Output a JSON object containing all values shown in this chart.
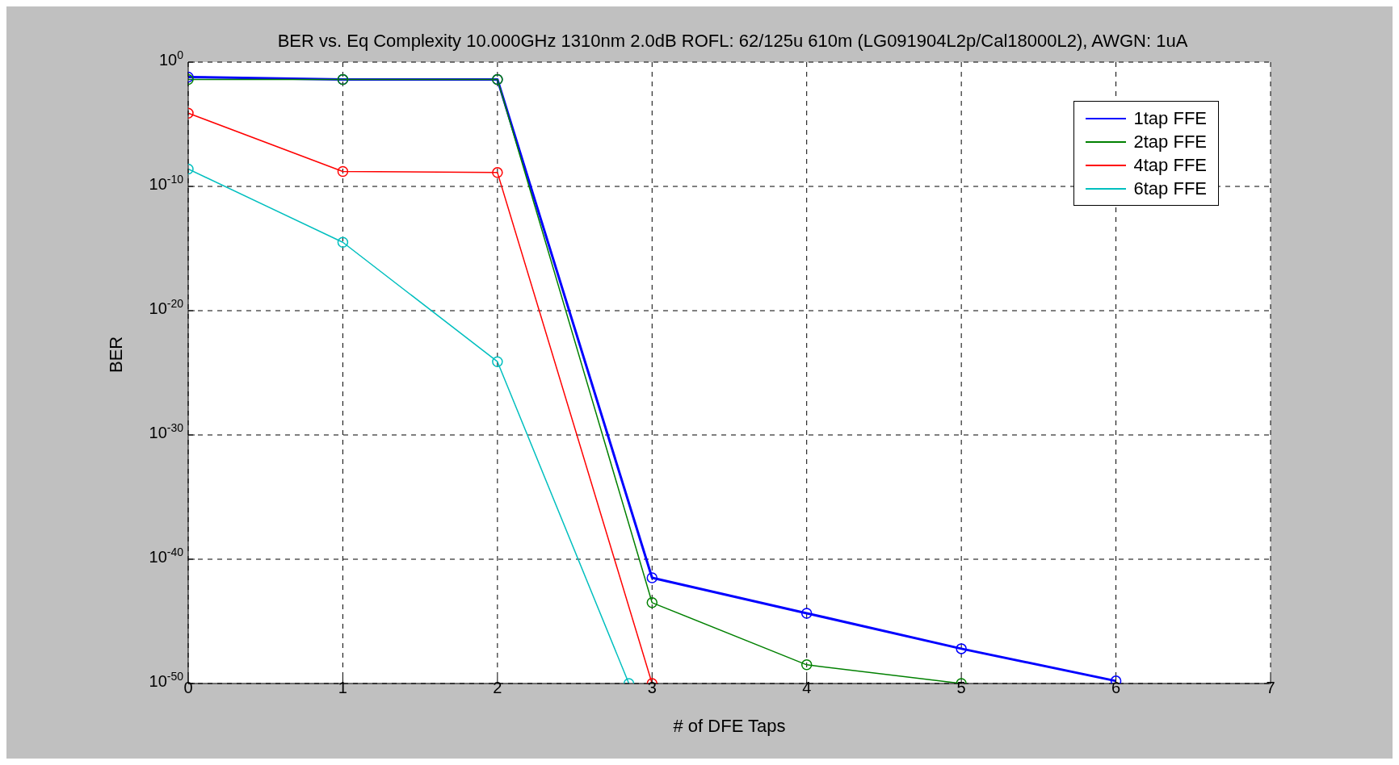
{
  "chart_data": {
    "type": "line",
    "title": "BER vs. Eq Complexity 10.000GHz 1310nm 2.0dB ROFL: 62/125u 610m (LG091904L2p/Cal18000L2), AWGN: 1uA",
    "xlabel": "# of DFE Taps",
    "ylabel": "BER",
    "x": [
      0,
      1,
      2,
      3,
      4,
      5,
      6
    ],
    "series": [
      {
        "name": "1tap FFE",
        "color": "#0000ff",
        "values": [
          0.063,
          0.04,
          0.04,
          3.2e-42,
          4.5e-45,
          6.3e-48,
          1.6e-50
        ]
      },
      {
        "name": "2tap FFE",
        "color": "#008000",
        "values": [
          0.04,
          0.04,
          0.04,
          3.2e-44,
          3.2e-49,
          1e-50,
          null
        ]
      },
      {
        "name": "4tap FFE",
        "color": "#ff0000",
        "values": [
          7.9e-05,
          1.6e-09,
          1.3e-09,
          1e-50,
          null,
          null,
          null
        ]
      },
      {
        "name": "6tap FFE",
        "color": "#00bfbf",
        "x": [
          0,
          1,
          2,
          2.85
        ],
        "values": [
          2.5e-09,
          3.2e-15,
          7.9e-25,
          1e-50
        ]
      }
    ],
    "log": "y",
    "xlim": [
      0,
      7
    ],
    "xticks": [
      0,
      1,
      2,
      3,
      4,
      5,
      6,
      7
    ],
    "ylim": [
      1e-50,
      1
    ],
    "yticks": [
      {
        "value": 1,
        "label": "10$^{0}$"
      },
      {
        "value": 1e-10,
        "label": "10$^{-10}$"
      },
      {
        "value": 1e-20,
        "label": "10$^{-20}$"
      },
      {
        "value": 1e-30,
        "label": "10$^{-30}$"
      },
      {
        "value": 1e-40,
        "label": "10$^{-40}$"
      },
      {
        "value": 1e-50,
        "label": "10$^{-50}$"
      }
    ],
    "grid": true,
    "legend": "top right",
    "marker": "circle",
    "line_style": "solid"
  }
}
